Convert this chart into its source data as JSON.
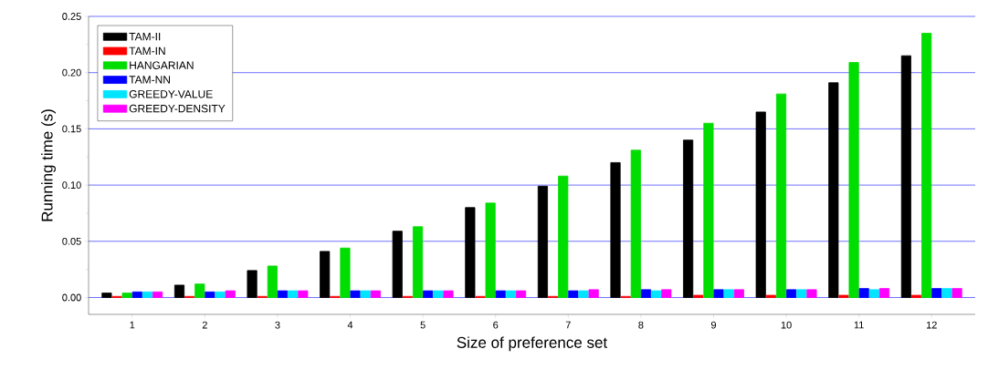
{
  "chart_data": {
    "type": "bar",
    "xlabel": "Size of preference set",
    "ylabel": "Running time (s)",
    "categories": [
      "1",
      "2",
      "3",
      "4",
      "5",
      "6",
      "7",
      "8",
      "9",
      "10",
      "11",
      "12"
    ],
    "series": [
      {
        "name": "TAM-II",
        "color": "#000000",
        "values": [
          0.004,
          0.011,
          0.024,
          0.041,
          0.059,
          0.08,
          0.099,
          0.12,
          0.14,
          0.165,
          0.191,
          0.215
        ]
      },
      {
        "name": "TAM-IN",
        "color": "#ff0000",
        "values": [
          0.001,
          0.001,
          0.001,
          0.001,
          0.001,
          0.001,
          0.001,
          0.001,
          0.002,
          0.002,
          0.002,
          0.002
        ]
      },
      {
        "name": "HANGARIAN",
        "color": "#00dd00",
        "values": [
          0.004,
          0.012,
          0.028,
          0.044,
          0.063,
          0.084,
          0.108,
          0.131,
          0.155,
          0.181,
          0.209,
          0.235
        ]
      },
      {
        "name": "TAM-NN",
        "color": "#0000ff",
        "values": [
          0.005,
          0.005,
          0.006,
          0.006,
          0.006,
          0.006,
          0.006,
          0.007,
          0.007,
          0.007,
          0.008,
          0.008
        ]
      },
      {
        "name": "GREEDY-VALUE",
        "color": "#00e5ff",
        "values": [
          0.005,
          0.005,
          0.006,
          0.006,
          0.006,
          0.006,
          0.006,
          0.006,
          0.007,
          0.007,
          0.007,
          0.008
        ]
      },
      {
        "name": "GREEDY-DENSITY",
        "color": "#ff00ff",
        "values": [
          0.005,
          0.006,
          0.006,
          0.006,
          0.006,
          0.006,
          0.007,
          0.007,
          0.007,
          0.007,
          0.008,
          0.008
        ]
      }
    ],
    "ylim": [
      -0.015,
      0.25
    ],
    "yticks": [
      {
        "value": 0,
        "label": "0.00"
      },
      {
        "value": 0.025,
        "label": null
      },
      {
        "value": 0.05,
        "label": "0.05"
      },
      {
        "value": 0.075,
        "label": null
      },
      {
        "value": 0.1,
        "label": "0.10"
      },
      {
        "value": 0.125,
        "label": null
      },
      {
        "value": 0.15,
        "label": "0.15"
      },
      {
        "value": 0.175,
        "label": null
      },
      {
        "value": 0.2,
        "label": "0.20"
      },
      {
        "value": 0.225,
        "label": null
      },
      {
        "value": 0.25,
        "label": "0.25"
      }
    ],
    "grid": "y",
    "legend": "top left"
  }
}
